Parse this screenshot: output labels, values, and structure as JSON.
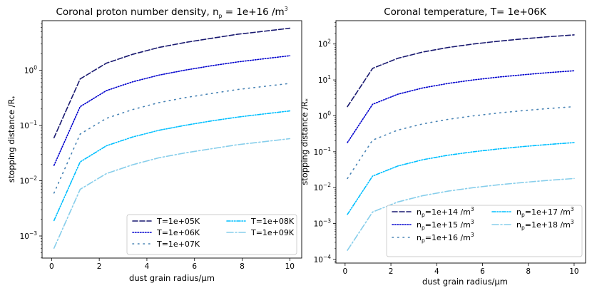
{
  "chart_data": [
    {
      "type": "line",
      "title": "Coronal proton number density, n",
      "title_sub": "p",
      "title_suffix": " = 1e+16 /m",
      "title_sup": "3",
      "xlabel": "dust grain radius/μm",
      "ylabel": "stopping distance /R",
      "ylabel_sub": "*",
      "xlim": [
        -0.4,
        10.5
      ],
      "ylim_log10": [
        -3.4,
        0.9
      ],
      "yscale": "log",
      "x_ticks": [
        0,
        2,
        4,
        6,
        8,
        10
      ],
      "x_tick_labels": [
        "0",
        "2",
        "4",
        "6",
        "8",
        "10"
      ],
      "y_ticks_log10": [
        -3,
        -2,
        -1,
        0
      ],
      "y_tick_labels": [
        {
          "base": "10",
          "exp": "−3"
        },
        {
          "base": "10",
          "exp": "−2"
        },
        {
          "base": "10",
          "exp": "−1"
        },
        {
          "base": "10",
          "exp": "0"
        }
      ],
      "x": [
        0.1,
        1.2,
        2.3,
        3.4,
        4.5,
        5.6,
        6.7,
        7.8,
        8.9,
        10.0
      ],
      "series": [
        {
          "name": "T=1e+05K",
          "color": "#191970",
          "dash": "long-dash",
          "values": [
            0.06,
            0.7,
            1.35,
            1.95,
            2.6,
            3.2,
            3.8,
            4.5,
            5.1,
            5.8
          ]
        },
        {
          "name": "T=1e+06K",
          "color": "#0000cd",
          "dash": "dotted",
          "values": [
            0.019,
            0.22,
            0.43,
            0.62,
            0.82,
            1.01,
            1.21,
            1.42,
            1.62,
            1.84
          ]
        },
        {
          "name": "T=1e+07K",
          "color": "#4682b4",
          "dash": "sparse-dotted",
          "values": [
            0.006,
            0.07,
            0.135,
            0.195,
            0.26,
            0.32,
            0.38,
            0.45,
            0.51,
            0.58
          ]
        },
        {
          "name": "T=1e+08K",
          "color": "#00bfff",
          "dash": "dash-dot-dot",
          "values": [
            0.0019,
            0.022,
            0.043,
            0.062,
            0.082,
            0.101,
            0.121,
            0.142,
            0.162,
            0.184
          ]
        },
        {
          "name": "T=1e+09K",
          "color": "#87ceeb",
          "dash": "dash-dot",
          "values": [
            0.0006,
            0.007,
            0.0135,
            0.0195,
            0.026,
            0.032,
            0.038,
            0.045,
            0.051,
            0.058
          ]
        }
      ],
      "legend": {
        "placement": "lower-right",
        "columns": 2,
        "entries": [
          "T=1e+05K",
          "T=1e+06K",
          "T=1e+07K",
          "T=1e+08K",
          "T=1e+09K"
        ]
      }
    },
    {
      "type": "line",
      "title": "Coronal temperature, T= 1e+06K",
      "xlabel": "dust grain radius/μm",
      "ylabel": "stopping distance /R",
      "ylabel_sub": "*",
      "xlim": [
        -0.4,
        10.5
      ],
      "ylim_log10": [
        -4.1,
        2.65
      ],
      "yscale": "log",
      "x_ticks": [
        0,
        2,
        4,
        6,
        8,
        10
      ],
      "x_tick_labels": [
        "0",
        "2",
        "4",
        "6",
        "8",
        "10"
      ],
      "y_ticks_log10": [
        -4,
        -3,
        -2,
        -1,
        0,
        1,
        2
      ],
      "y_tick_labels": [
        {
          "base": "10",
          "exp": "−4"
        },
        {
          "base": "10",
          "exp": "−3"
        },
        {
          "base": "10",
          "exp": "−2"
        },
        {
          "base": "10",
          "exp": "−1"
        },
        {
          "base": "10",
          "exp": "0"
        },
        {
          "base": "10",
          "exp": "1"
        },
        {
          "base": "10",
          "exp": "2"
        }
      ],
      "x": [
        0.1,
        1.2,
        2.3,
        3.4,
        4.5,
        5.6,
        6.7,
        7.8,
        8.9,
        10.0
      ],
      "series": [
        {
          "name": "n",
          "name_sub": "p",
          "name_rest": "=1e+14 /m",
          "name_sup": "3",
          "color": "#191970",
          "dash": "long-dash",
          "values": [
            1.8,
            21,
            40,
            60,
            80,
            100,
            120,
            140,
            160,
            180
          ]
        },
        {
          "name": "n",
          "name_sub": "p",
          "name_rest": "=1e+15 /m",
          "name_sup": "3",
          "color": "#0000cd",
          "dash": "dotted",
          "values": [
            0.18,
            2.1,
            4.0,
            6.0,
            8.0,
            10,
            12,
            14,
            16,
            18
          ]
        },
        {
          "name": "n",
          "name_sub": "p",
          "name_rest": "=1e+16 /m",
          "name_sup": "3",
          "color": "#4682b4",
          "dash": "sparse-dotted",
          "values": [
            0.018,
            0.21,
            0.4,
            0.6,
            0.8,
            1.0,
            1.2,
            1.4,
            1.6,
            1.8
          ]
        },
        {
          "name": "n",
          "name_sub": "p",
          "name_rest": "=1e+17 /m",
          "name_sup": "3",
          "color": "#00bfff",
          "dash": "dash-dot-dot",
          "values": [
            0.0018,
            0.021,
            0.04,
            0.06,
            0.08,
            0.1,
            0.12,
            0.14,
            0.16,
            0.18
          ]
        },
        {
          "name": "n",
          "name_sub": "p",
          "name_rest": "=1e+18 /m",
          "name_sup": "3",
          "color": "#87ceeb",
          "dash": "dash-dot",
          "values": [
            0.00018,
            0.0021,
            0.004,
            0.006,
            0.008,
            0.01,
            0.012,
            0.014,
            0.016,
            0.018
          ]
        }
      ],
      "legend": {
        "placement": "lower-right",
        "columns": 2
      }
    }
  ]
}
